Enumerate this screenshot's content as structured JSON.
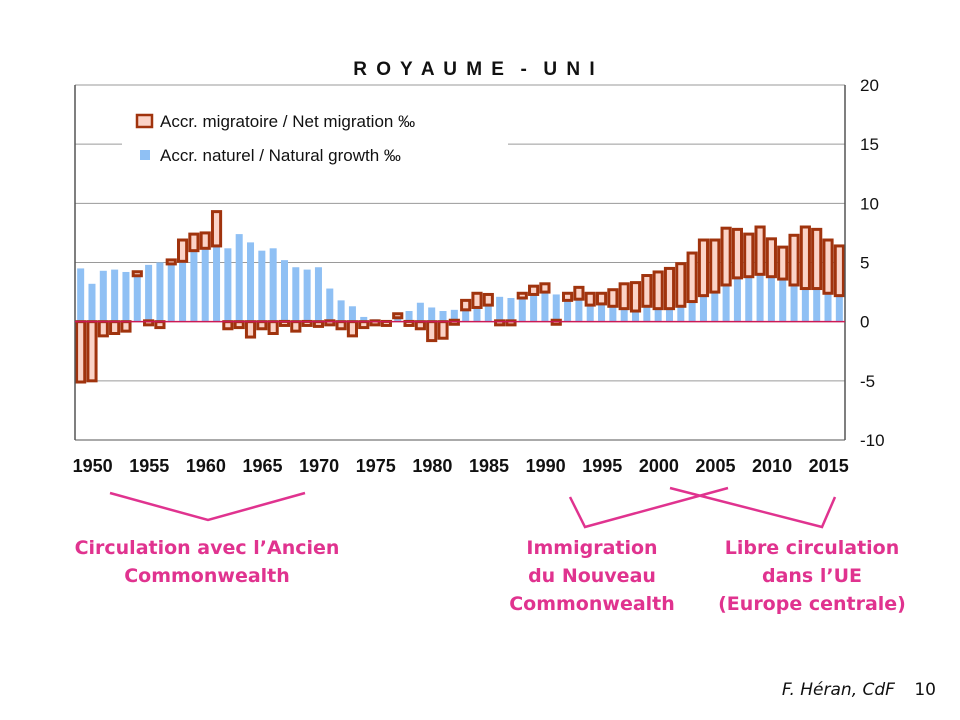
{
  "chart_data": {
    "type": "bar",
    "title": "R O Y A U M E  -  U N I",
    "x": [
      1950,
      1951,
      1952,
      1953,
      1954,
      1955,
      1956,
      1957,
      1958,
      1959,
      1960,
      1961,
      1962,
      1963,
      1964,
      1965,
      1966,
      1967,
      1968,
      1969,
      1970,
      1971,
      1972,
      1973,
      1974,
      1975,
      1976,
      1977,
      1978,
      1979,
      1980,
      1981,
      1982,
      1983,
      1984,
      1985,
      1986,
      1987,
      1988,
      1989,
      1990,
      1991,
      1992,
      1993,
      1994,
      1995,
      1996,
      1997,
      1998,
      1999,
      2000,
      2001,
      2002,
      2003,
      2004,
      2005,
      2006,
      2007,
      2008,
      2009,
      2010,
      2011,
      2012,
      2013,
      2014,
      2015,
      2016,
      2017
    ],
    "x_ticks": [
      1950,
      1955,
      1960,
      1965,
      1970,
      1975,
      1980,
      1985,
      1990,
      1995,
      2000,
      2005,
      2010,
      2015
    ],
    "ylim": [
      -10,
      20
    ],
    "y_ticks": [
      20,
      15,
      10,
      5,
      0,
      -5,
      -10
    ],
    "y_axis_side": "right",
    "grid": true,
    "legend_position": "top-left",
    "series": [
      {
        "name": "Accr. migratoire / Net migration ‰",
        "style": "hollow-bar-stacked-on-natural",
        "color": "#a0330d",
        "fill": "#fbd3c7",
        "values": [
          -5.1,
          -5,
          -1.2,
          -1,
          -0.8,
          0.1,
          -0.2,
          -0.5,
          0.1,
          1.8,
          1.4,
          1.3,
          2.9,
          -0.6,
          -0.5,
          -1.3,
          -0.6,
          -1,
          -0.3,
          -0.8,
          -0.3,
          -0.4,
          -0.2,
          -0.6,
          -1.2,
          -0.5,
          -0.2,
          -0.3,
          0,
          -0.3,
          -0.6,
          -1.6,
          -1.4,
          -0.1,
          0.8,
          1.2,
          0.9,
          -0.2,
          -0.2,
          0.4,
          0.7,
          0.7,
          -0.1,
          0.6,
          1,
          1,
          0.9,
          1.4,
          2.1,
          2.4,
          2.6,
          3.1,
          3.4,
          3.6,
          4.1,
          4.7,
          4.4,
          4.8,
          4.1,
          3.6,
          4,
          3.2,
          2.7,
          4.2,
          5.2,
          5,
          4.5,
          4.2
        ]
      },
      {
        "name": "Accr. naturel / Natural growth ‰",
        "style": "solid-bar",
        "color": "#8fc0f4",
        "values": [
          4.5,
          3.2,
          4.3,
          4.4,
          4.2,
          4,
          4.8,
          5,
          5,
          5.1,
          6,
          6.2,
          6.4,
          6.2,
          7.4,
          6.7,
          6,
          6.2,
          5.2,
          4.6,
          4.4,
          4.6,
          2.8,
          1.8,
          1.3,
          0.4,
          0.2,
          0.1,
          0.5,
          0.9,
          1.6,
          1.2,
          0.9,
          1,
          1,
          1.2,
          1.4,
          2.1,
          2,
          2,
          2.3,
          2.5,
          2.3,
          1.8,
          1.9,
          1.4,
          1.5,
          1.3,
          1.1,
          0.9,
          1.3,
          1.1,
          1.1,
          1.3,
          1.7,
          2.2,
          2.5,
          3.1,
          3.7,
          3.8,
          4,
          3.8,
          3.6,
          3.1,
          2.8,
          2.8,
          2.4,
          2.2
        ]
      }
    ]
  },
  "annotations": {
    "ancien": {
      "line1": "Circulation avec l’Ancien",
      "line2": "Commonwealth"
    },
    "nouveau": {
      "line1": "Immigration",
      "line2": "du Nouveau",
      "line3": "Commonwealth"
    },
    "ue": {
      "line1": "Libre circulation",
      "line2": "dans l’UE",
      "line3": "(Europe centrale)"
    },
    "color": "#e0338f"
  },
  "footer": {
    "author": "F. Héran, CdF",
    "page": "10"
  }
}
